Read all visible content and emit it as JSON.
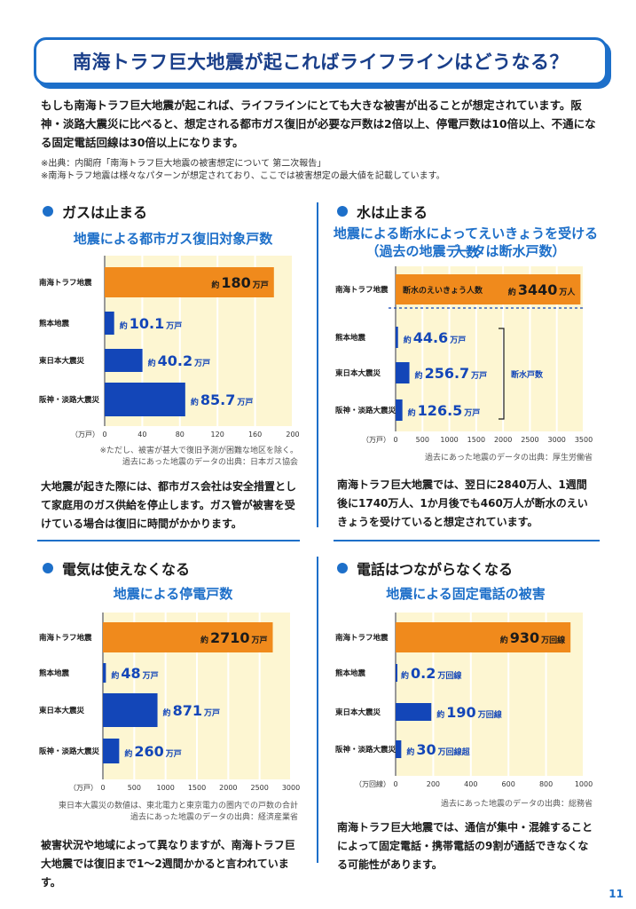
{
  "title": "南海トラフ巨大地震が起こればライフラインはどうなる？",
  "intro": "もしも南海トラフ巨大地震が起これば、ライフラインにとても大きな被害が出ることが想定されています。阪神・淡路大震災に比べると、想定される都市ガス復旧が必要な戸数は2倍以上、停電戸数は10倍以上、不通になる固定電話回線は30倍以上になります。",
  "notes": [
    "※出典：内閣府「南海トラフ巨大地震の被害想定について 第二次報告」",
    "※南海トラフ地震は様々なパターンが想定されており、ここでは被害想定の最大値を記載しています。"
  ],
  "sections": {
    "gas": {
      "heading": "ガスは止まる",
      "chart_title": "地震による都市ガス復旧対象戸数",
      "source_lines": [
        "※ただし、被害が甚大で復旧予測が困難な地区を除く。",
        "過去にあった地震のデータの出典：日本ガス協会"
      ],
      "body": "大地震が起きた際には、都市ガス会社は安全措置として家庭用のガス供給を停止します。ガス管が被害を受けている場合は復旧に時間がかかります。"
    },
    "water": {
      "heading": "水は止まる",
      "chart_title": "地震による断水によってえいきょうを受ける人数",
      "chart_subtitle": "（過去の地震データは断水戸数）",
      "bracket_label": "断水戸数",
      "inbar_label": "断水のえいきょう人数",
      "source_lines": [
        "過去にあった地震のデータの出典：厚生労働省"
      ],
      "body": "南海トラフ巨大地震では、翌日に2840万人、1週間後に1740万人、1か月後でも460万人が断水のえいきょうを受けていると想定されています。"
    },
    "power": {
      "heading": "電気は使えなくなる",
      "chart_title": "地震による停電戸数",
      "source_lines": [
        "東日本大震災の数値は、東北電力と東京電力の圏内での戸数の合計",
        "過去にあった地震のデータの出典：経済産業省"
      ],
      "body": "被害状況や地域によって異なりますが、南海トラフ巨大地震では復旧まで1〜2週間かかると言われています。"
    },
    "phone": {
      "heading": "電話はつながらなくなる",
      "chart_title": "地震による固定電話の被害",
      "source_lines": [
        "過去にあった地震のデータの出典：総務省"
      ],
      "body": "南海トラフ巨大地震では、通信が集中・混雑することによって固定電話・携帯電話の9割が通話できなくなる可能性があります。"
    }
  },
  "page_number": "11",
  "colors": {
    "accent_blue": "#1d6fc9",
    "bar_blue": "#1346b8",
    "bar_orange": "#f08a1c",
    "chart_bg": "#fdf6d2"
  },
  "chart_data": [
    {
      "type": "bar",
      "orientation": "horizontal",
      "title": "地震による都市ガス復旧対象戸数",
      "unit_label": "（万戸）",
      "categories": [
        "南海トラフ地震",
        "熊本地震",
        "東日本大震災",
        "阪神・淡路大震災"
      ],
      "values": [
        180,
        10.1,
        40.2,
        85.7
      ],
      "value_prefix": "約",
      "value_texts": [
        "180",
        "10.1",
        "40.2",
        "85.7"
      ],
      "value_unit": "万戸",
      "xlim": [
        0,
        200
      ],
      "ticks": [
        0,
        40,
        80,
        120,
        160,
        200
      ],
      "highlight_index": 0
    },
    {
      "type": "bar",
      "orientation": "horizontal",
      "title": "地震による断水によってえいきょうを受ける人数",
      "unit_label": "（万戸）",
      "categories": [
        "南海トラフ地震",
        "熊本地震",
        "東日本大震災",
        "阪神・淡路大震災"
      ],
      "values": [
        3440,
        44.6,
        256.7,
        126.5
      ],
      "value_prefix": "約",
      "value_texts": [
        "3440",
        "44.6",
        "256.7",
        "126.5"
      ],
      "value_units": [
        "万人",
        "万戸",
        "万戸",
        "万戸"
      ],
      "xlim": [
        0,
        3500
      ],
      "ticks": [
        0,
        500,
        1000,
        1500,
        2000,
        2500,
        3000,
        3500
      ],
      "tick_labels": [
        "0",
        "500",
        "1000",
        "1500",
        "2000",
        "2500",
        "3000",
        "3500"
      ],
      "highlight_index": 0
    },
    {
      "type": "bar",
      "orientation": "horizontal",
      "title": "地震による停電戸数",
      "unit_label": "（万戸）",
      "categories": [
        "南海トラフ地震",
        "熊本地震",
        "東日本大震災",
        "阪神・淡路大震災"
      ],
      "values": [
        2710,
        48,
        871,
        260
      ],
      "value_prefix": "約",
      "value_texts": [
        "2710",
        "48",
        "871",
        "260"
      ],
      "value_unit": "万戸",
      "xlim": [
        0,
        3000
      ],
      "ticks": [
        0,
        500,
        1000,
        1500,
        2000,
        2500,
        3000
      ],
      "highlight_index": 0
    },
    {
      "type": "bar",
      "orientation": "horizontal",
      "title": "地震による固定電話の被害",
      "unit_label": "（万回線）",
      "categories": [
        "南海トラフ地震",
        "熊本地震",
        "東日本大震災",
        "阪神・淡路大震災"
      ],
      "values": [
        930,
        0.2,
        190,
        30
      ],
      "value_prefix": "約",
      "value_texts": [
        "930",
        "0.2",
        "190",
        "30"
      ],
      "value_units": [
        "万回線",
        "万回線",
        "万回線",
        "万回線超"
      ],
      "xlim": [
        0,
        1000
      ],
      "ticks": [
        0,
        200,
        400,
        600,
        800,
        1000
      ],
      "highlight_index": 0
    }
  ]
}
